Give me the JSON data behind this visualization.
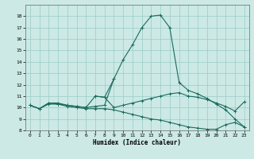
{
  "xlabel": "Humidex (Indice chaleur)",
  "xlim": [
    -0.5,
    23.5
  ],
  "ylim": [
    8.0,
    19.0
  ],
  "yticks": [
    8,
    9,
    10,
    11,
    12,
    13,
    14,
    15,
    16,
    17,
    18
  ],
  "xticks": [
    0,
    1,
    2,
    3,
    4,
    5,
    6,
    7,
    8,
    9,
    10,
    11,
    12,
    13,
    14,
    15,
    16,
    17,
    18,
    19,
    20,
    21,
    22,
    23
  ],
  "background_color": "#cce9e5",
  "grid_color": "#99ccc8",
  "line_color": "#1a6b5e",
  "series": [
    {
      "x": [
        0,
        1,
        2,
        3,
        4,
        5,
        6,
        7,
        8,
        9,
        10,
        11,
        12,
        13,
        14,
        15,
        16,
        17,
        18,
        19,
        20,
        21,
        22,
        23
      ],
      "y": [
        10.2,
        9.9,
        10.4,
        10.3,
        10.2,
        10.1,
        10.0,
        10.1,
        10.2,
        12.5,
        14.2,
        15.5,
        17.0,
        18.0,
        18.1,
        17.0,
        12.2,
        11.5,
        11.2,
        10.8,
        10.3,
        9.8,
        9.0,
        8.3
      ]
    },
    {
      "x": [
        0,
        1,
        2,
        3,
        4,
        5,
        6,
        7,
        8,
        9,
        10,
        11,
        12,
        13,
        14,
        15,
        16,
        17,
        18,
        19,
        20,
        21,
        22,
        23
      ],
      "y": [
        10.2,
        9.9,
        10.4,
        10.4,
        10.2,
        10.1,
        10.0,
        11.0,
        10.9,
        10.0,
        10.2,
        10.4,
        10.6,
        10.8,
        11.0,
        11.2,
        11.3,
        11.0,
        10.9,
        10.7,
        10.4,
        10.1,
        9.7,
        10.5
      ]
    },
    {
      "x": [
        0,
        1,
        2,
        3,
        4,
        5,
        6,
        7,
        8,
        9,
        10,
        11,
        12,
        13,
        14,
        15,
        16,
        17,
        18,
        19,
        20,
        21,
        22,
        23
      ],
      "y": [
        10.2,
        9.9,
        10.3,
        10.3,
        10.1,
        10.0,
        9.9,
        9.9,
        9.9,
        9.8,
        9.6,
        9.4,
        9.2,
        9.0,
        8.9,
        8.7,
        8.5,
        8.3,
        8.2,
        8.1,
        8.1,
        8.5,
        8.7,
        8.3
      ]
    },
    {
      "x": [
        7,
        8,
        9
      ],
      "y": [
        11.0,
        10.9,
        12.5
      ]
    }
  ]
}
